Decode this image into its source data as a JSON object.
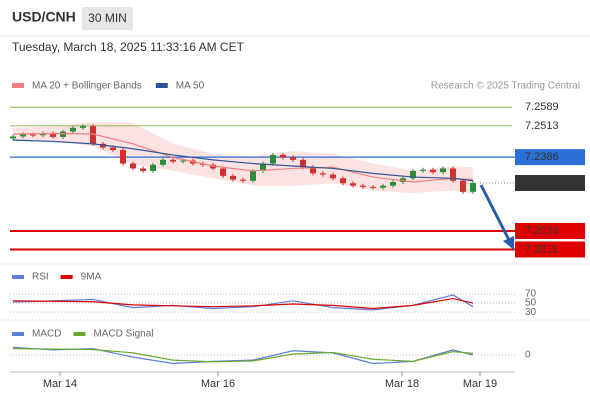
{
  "chart_data": [
    {
      "type": "candlestick",
      "title": "USD/CNH",
      "timeframe": "30 MIN",
      "subtitle": "Tuesday, March 18, 2025 11:33:16 AM CET",
      "source": "Research © 2025 Trading Central",
      "ylim": [
        7.196,
        7.274
      ],
      "up_color": "#2e8b3a",
      "down_color": "#d32f2f",
      "ohlc": [
        [
          7.2462,
          7.2478,
          7.2454,
          7.247
        ],
        [
          7.247,
          7.2486,
          7.2462,
          7.2478
        ],
        [
          7.2478,
          7.2486,
          7.2467,
          7.2475
        ],
        [
          7.2475,
          7.249,
          7.2467,
          7.2482
        ],
        [
          7.2482,
          7.249,
          7.246,
          7.2468
        ],
        [
          7.2468,
          7.2498,
          7.246,
          7.249
        ],
        [
          7.249,
          7.2513,
          7.2482,
          7.2505
        ],
        [
          7.2505,
          7.252,
          7.2497,
          7.2512
        ],
        [
          7.2512,
          7.252,
          7.2432,
          7.244
        ],
        [
          7.244,
          7.2448,
          7.2417,
          7.2425
        ],
        [
          7.2425,
          7.2433,
          7.2407,
          7.2415
        ],
        [
          7.2415,
          7.2423,
          7.2352,
          7.236
        ],
        [
          7.236,
          7.2368,
          7.2332,
          7.234
        ],
        [
          7.234,
          7.2348,
          7.2322,
          7.233
        ],
        [
          7.233,
          7.2363,
          7.2322,
          7.2355
        ],
        [
          7.2355,
          7.2383,
          7.2347,
          7.2375
        ],
        [
          7.2375,
          7.2383,
          7.236,
          7.2368
        ],
        [
          7.2368,
          7.238,
          7.236,
          7.2372
        ],
        [
          7.2372,
          7.238,
          7.2352,
          7.236
        ],
        [
          7.236,
          7.2368,
          7.2347,
          7.2355
        ],
        [
          7.2355,
          7.2363,
          7.2332,
          7.234
        ],
        [
          7.234,
          7.2348,
          7.2302,
          7.231
        ],
        [
          7.231,
          7.2318,
          7.2287,
          7.2295
        ],
        [
          7.2295,
          7.2303,
          7.2282,
          7.229
        ],
        [
          7.229,
          7.2338,
          7.2282,
          7.233
        ],
        [
          7.233,
          7.2368,
          7.2322,
          7.236
        ],
        [
          7.236,
          7.2403,
          7.2352,
          7.2395
        ],
        [
          7.2395,
          7.2403,
          7.2377,
          7.2385
        ],
        [
          7.2385,
          7.2393,
          7.2367,
          7.2375
        ],
        [
          7.2375,
          7.2383,
          7.2337,
          7.2345
        ],
        [
          7.2345,
          7.2353,
          7.2312,
          7.232
        ],
        [
          7.232,
          7.2328,
          7.2307,
          7.2315
        ],
        [
          7.2315,
          7.2323,
          7.2292,
          7.23
        ],
        [
          7.23,
          7.2308,
          7.2272,
          7.228
        ],
        [
          7.228,
          7.2288,
          7.2262,
          7.227
        ],
        [
          7.227,
          7.2278,
          7.2257,
          7.2265
        ],
        [
          7.2265,
          7.2273,
          7.2254,
          7.2262
        ],
        [
          7.2262,
          7.2278,
          7.2254,
          7.227
        ],
        [
          7.227,
          7.2293,
          7.2262,
          7.2285
        ],
        [
          7.2285,
          7.2308,
          7.2277,
          7.23
        ],
        [
          7.23,
          7.2338,
          7.2292,
          7.233
        ],
        [
          7.233,
          7.2343,
          7.2322,
          7.2335
        ],
        [
          7.2335,
          7.2343,
          7.2317,
          7.2325
        ],
        [
          7.2325,
          7.2348,
          7.2317,
          7.234
        ],
        [
          7.234,
          7.2348,
          7.2282,
          7.229
        ],
        [
          7.229,
          7.2298,
          7.2237,
          7.2245
        ],
        [
          7.2245,
          7.2289,
          7.2237,
          7.2281
        ]
      ],
      "x": [
        0,
        4,
        8,
        12,
        16,
        20,
        24,
        28,
        32,
        36,
        40,
        44,
        46
      ],
      "series": [
        {
          "name": "MA 20 + Bollinger Bands",
          "color": "#f08080",
          "band_color": "#fde2e2",
          "values": [
            7.248,
            7.2482,
            7.248,
            7.244,
            7.2385,
            7.235,
            7.233,
            7.234,
            7.2345,
            7.2305,
            7.2285,
            7.23,
            7.2295
          ],
          "band_upper": [
            7.2505,
            7.251,
            7.253,
            7.2525,
            7.244,
            7.24,
            7.239,
            7.241,
            7.24,
            7.236,
            7.233,
            7.235,
            7.2345
          ],
          "band_lower": [
            7.2455,
            7.2455,
            7.243,
            7.2355,
            7.233,
            7.23,
            7.227,
            7.227,
            7.228,
            7.225,
            7.224,
            7.225,
            7.2235
          ]
        },
        {
          "name": "MA 50",
          "color": "#2f5597",
          "values": [
            7.2455,
            7.245,
            7.244,
            7.242,
            7.2395,
            7.2375,
            7.236,
            7.235,
            7.234,
            7.232,
            7.2305,
            7.23,
            7.229
          ]
        }
      ],
      "levels": [
        {
          "value": 7.2589,
          "style": "plain",
          "color": "#6aaa2a"
        },
        {
          "value": 7.2513,
          "style": "plain",
          "color": "#6aaa2a"
        },
        {
          "value": 7.2386,
          "style": "box",
          "color": "#2a6fd6"
        },
        {
          "value": 7.2281,
          "style": "dotted",
          "color": "#333333"
        },
        {
          "value": 7.2086,
          "style": "thick",
          "color": "#e00000"
        },
        {
          "value": 7.2011,
          "style": "thick",
          "color": "#e00000"
        }
      ],
      "xticks": [
        {
          "value": 4.7,
          "label": "Mar 14"
        },
        {
          "value": 20.5,
          "label": "Mar 16"
        },
        {
          "value": 38.9,
          "label": "Mar 18"
        },
        {
          "value": 46.7,
          "label": "Mar 19"
        }
      ]
    },
    {
      "type": "line",
      "ylim": [
        17,
        90
      ],
      "yticks": [
        30,
        50,
        70
      ],
      "x": [
        0,
        4,
        8,
        12,
        16,
        20,
        24,
        28,
        32,
        36,
        40,
        44,
        46
      ],
      "series": [
        {
          "name": "RSI",
          "color": "#5b7fd6",
          "values": [
            52,
            55,
            58,
            40,
            45,
            38,
            42,
            55,
            40,
            35,
            45,
            68,
            42
          ]
        },
        {
          "name": "9MA",
          "color": "#e00000",
          "values": [
            55,
            54,
            53,
            46,
            44,
            42,
            44,
            48,
            45,
            38,
            45,
            60,
            50
          ]
        }
      ]
    },
    {
      "type": "line",
      "ylim": [
        -0.004,
        0.004
      ],
      "yticks": [
        0
      ],
      "x": [
        0,
        4,
        8,
        12,
        16,
        20,
        24,
        28,
        32,
        36,
        40,
        44,
        46
      ],
      "series": [
        {
          "name": "MACD",
          "color": "#5b7fd6",
          "values": [
            0.0018,
            0.0012,
            0.0015,
            -0.0005,
            -0.002,
            -0.0015,
            -0.0012,
            0.001,
            0.0005,
            -0.002,
            -0.0015,
            0.0012,
            0.0
          ]
        },
        {
          "name": "MACD Signal",
          "color": "#6aaa2a",
          "values": [
            0.0015,
            0.0014,
            0.0013,
            0.0005,
            -0.0012,
            -0.0016,
            -0.0014,
            0.0002,
            0.0006,
            -0.001,
            -0.0015,
            0.0008,
            0.0004
          ]
        }
      ]
    }
  ]
}
